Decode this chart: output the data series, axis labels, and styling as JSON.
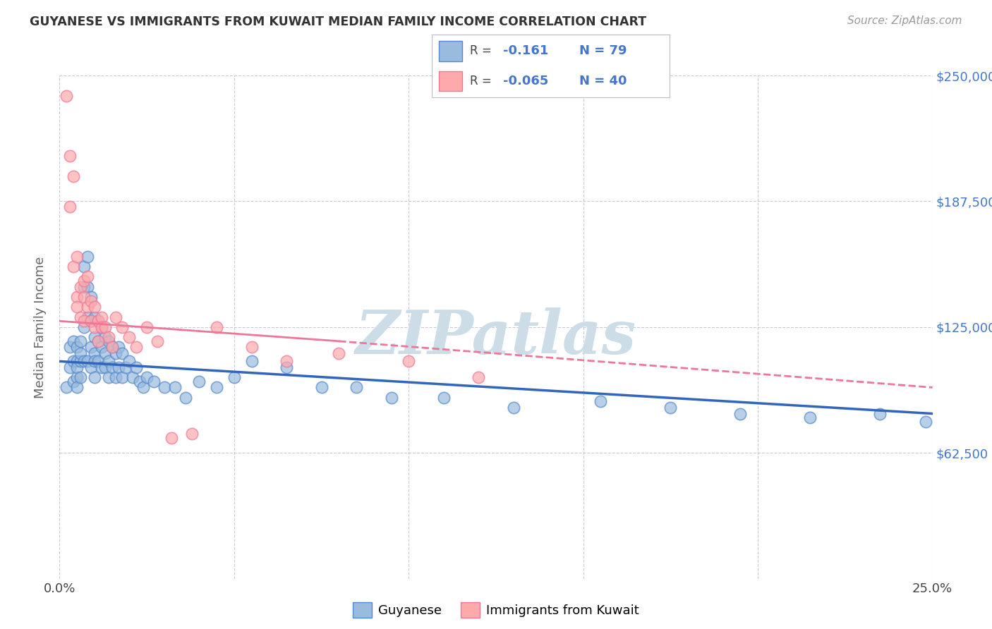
{
  "title": "GUYANESE VS IMMIGRANTS FROM KUWAIT MEDIAN FAMILY INCOME CORRELATION CHART",
  "source": "Source: ZipAtlas.com",
  "ylabel": "Median Family Income",
  "xlim": [
    0,
    0.25
  ],
  "ylim": [
    0,
    250000
  ],
  "yticks": [
    0,
    62500,
    125000,
    187500,
    250000
  ],
  "ytick_labels_right": [
    "",
    "$62,500",
    "$125,000",
    "$187,500",
    "$250,000"
  ],
  "xticks": [
    0.0,
    0.05,
    0.1,
    0.15,
    0.2,
    0.25
  ],
  "xtick_labels": [
    "0.0%",
    "",
    "",
    "",
    "",
    "25.0%"
  ],
  "legend_labels": [
    "Guyanese",
    "Immigrants from Kuwait"
  ],
  "R_blue": "-0.161",
  "N_blue": "79",
  "R_pink": "-0.065",
  "N_pink": "40",
  "color_blue_fill": "#99BBDD",
  "color_blue_edge": "#5588CC",
  "color_pink_fill": "#FFAAAA",
  "color_pink_edge": "#EE7799",
  "color_blue_line": "#3366BB",
  "color_pink_line": "#EE7799",
  "watermark": "ZIPatlas",
  "watermark_color": "#CCDDE8",
  "guyanese_x": [
    0.002,
    0.003,
    0.003,
    0.004,
    0.004,
    0.004,
    0.005,
    0.005,
    0.005,
    0.005,
    0.005,
    0.006,
    0.006,
    0.006,
    0.006,
    0.007,
    0.007,
    0.007,
    0.007,
    0.008,
    0.008,
    0.008,
    0.008,
    0.009,
    0.009,
    0.009,
    0.009,
    0.01,
    0.01,
    0.01,
    0.01,
    0.01,
    0.011,
    0.011,
    0.011,
    0.012,
    0.012,
    0.012,
    0.013,
    0.013,
    0.013,
    0.014,
    0.014,
    0.014,
    0.015,
    0.015,
    0.016,
    0.016,
    0.017,
    0.017,
    0.018,
    0.018,
    0.019,
    0.02,
    0.021,
    0.022,
    0.023,
    0.024,
    0.025,
    0.027,
    0.03,
    0.033,
    0.036,
    0.04,
    0.045,
    0.05,
    0.055,
    0.065,
    0.075,
    0.085,
    0.095,
    0.11,
    0.13,
    0.155,
    0.175,
    0.195,
    0.215,
    0.235,
    0.248
  ],
  "guyanese_y": [
    95000,
    115000,
    105000,
    108000,
    98000,
    118000,
    100000,
    108000,
    115000,
    105000,
    95000,
    108000,
    100000,
    118000,
    112000,
    155000,
    145000,
    125000,
    108000,
    160000,
    145000,
    130000,
    108000,
    140000,
    128000,
    115000,
    105000,
    130000,
    120000,
    112000,
    108000,
    100000,
    128000,
    118000,
    108000,
    125000,
    115000,
    105000,
    120000,
    112000,
    105000,
    118000,
    108000,
    100000,
    115000,
    105000,
    112000,
    100000,
    115000,
    105000,
    112000,
    100000,
    105000,
    108000,
    100000,
    105000,
    98000,
    95000,
    100000,
    98000,
    95000,
    95000,
    90000,
    98000,
    95000,
    100000,
    108000,
    105000,
    95000,
    95000,
    90000,
    90000,
    85000,
    88000,
    85000,
    82000,
    80000,
    82000,
    78000
  ],
  "kuwait_x": [
    0.002,
    0.003,
    0.003,
    0.004,
    0.004,
    0.005,
    0.005,
    0.005,
    0.006,
    0.006,
    0.007,
    0.007,
    0.007,
    0.008,
    0.008,
    0.009,
    0.009,
    0.01,
    0.01,
    0.011,
    0.011,
    0.012,
    0.012,
    0.013,
    0.014,
    0.015,
    0.016,
    0.018,
    0.02,
    0.022,
    0.025,
    0.028,
    0.032,
    0.038,
    0.045,
    0.055,
    0.065,
    0.08,
    0.1,
    0.12
  ],
  "kuwait_y": [
    240000,
    210000,
    185000,
    155000,
    200000,
    140000,
    135000,
    160000,
    130000,
    145000,
    140000,
    128000,
    148000,
    135000,
    150000,
    128000,
    138000,
    125000,
    135000,
    128000,
    118000,
    130000,
    125000,
    125000,
    120000,
    115000,
    130000,
    125000,
    120000,
    115000,
    125000,
    118000,
    70000,
    72000,
    125000,
    115000,
    108000,
    112000,
    108000,
    100000
  ]
}
